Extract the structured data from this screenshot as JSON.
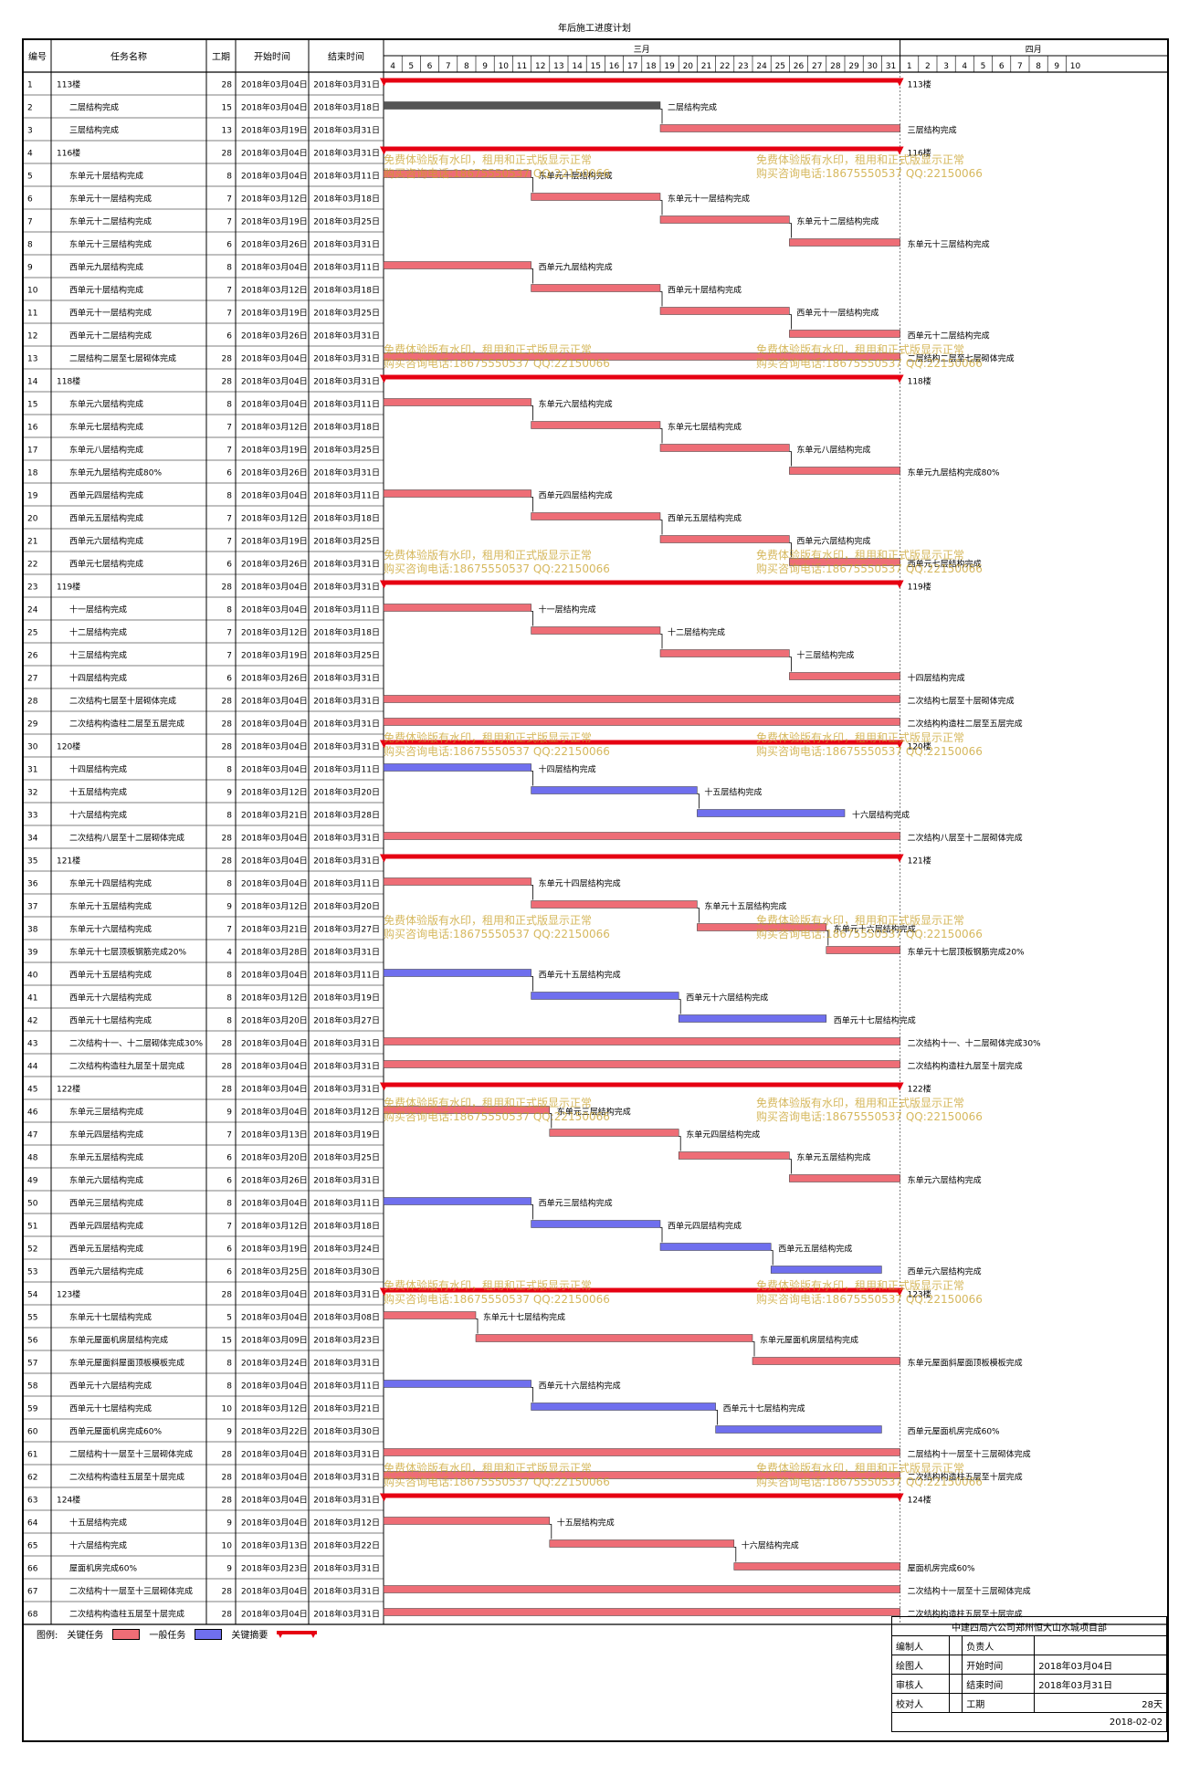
{
  "page": {
    "title": "年后施工进度计划"
  },
  "headers": {
    "id": "编号",
    "name": "任务名称",
    "dur": "工期",
    "start": "开始时间",
    "end": "结束时间",
    "march": "三月",
    "april": "四月"
  },
  "timescale": {
    "march_days": [
      4,
      5,
      6,
      7,
      8,
      9,
      10,
      11,
      12,
      13,
      14,
      15,
      16,
      17,
      18,
      19,
      20,
      21,
      22,
      23,
      24,
      25,
      26,
      27,
      28,
      29,
      30,
      31
    ],
    "april_days": [
      1,
      2,
      3,
      4,
      5,
      6,
      7,
      8,
      9,
      10
    ]
  },
  "colors": {
    "critical": "#ee6d76",
    "normal": "#6f6fee",
    "summary": "#e60012",
    "gray": "#555555"
  },
  "watermark": {
    "line1": "免费体验版有水印，租用和正式版显示正常",
    "line2": "购买咨询电话:18675550537 QQ:22150066"
  },
  "legend": {
    "label": "图例:",
    "critical": "关键任务",
    "normal": "一般任务",
    "summary": "关键摘要"
  },
  "footer": {
    "company": "中建四局六公司郑州恒大山水城项目部",
    "editor": "编制人",
    "responsible": "负责人",
    "drawer": "绘图人",
    "start_label": "开始时间",
    "start_value": "2018年03月04日",
    "reviewer": "审核人",
    "end_label": "结束时间",
    "end_value": "2018年03月31日",
    "checker": "校对人",
    "dur_label": "工期",
    "dur_value": "28天",
    "date": "2018-02-02"
  },
  "chart_data": {
    "type": "gantt",
    "tasks": [
      {
        "id": 1,
        "name": "113楼",
        "level": 0,
        "dur": 28,
        "start": "2018年03月04日",
        "end": "2018年03月31日",
        "s": 4,
        "e": 31,
        "kind": "summary",
        "label": "113楼"
      },
      {
        "id": 2,
        "name": "二层结构完成",
        "level": 1,
        "dur": 15,
        "start": "2018年03月04日",
        "end": "2018年03月18日",
        "s": 4,
        "e": 18,
        "kind": "gray",
        "label": "二层结构完成"
      },
      {
        "id": 3,
        "name": "三层结构完成",
        "level": 1,
        "dur": 13,
        "start": "2018年03月19日",
        "end": "2018年03月31日",
        "s": 19,
        "e": 31,
        "kind": "critical",
        "label": "三层结构完成"
      },
      {
        "id": 4,
        "name": "116楼",
        "level": 0,
        "dur": 28,
        "start": "2018年03月04日",
        "end": "2018年03月31日",
        "s": 4,
        "e": 31,
        "kind": "summary",
        "label": "116楼"
      },
      {
        "id": 5,
        "name": "东单元十层结构完成",
        "level": 1,
        "dur": 8,
        "start": "2018年03月04日",
        "end": "2018年03月11日",
        "s": 4,
        "e": 11,
        "kind": "critical",
        "label": "东单元十层结构完成"
      },
      {
        "id": 6,
        "name": "东单元十一层结构完成",
        "level": 1,
        "dur": 7,
        "start": "2018年03月12日",
        "end": "2018年03月18日",
        "s": 12,
        "e": 18,
        "kind": "critical",
        "label": "东单元十一层结构完成"
      },
      {
        "id": 7,
        "name": "东单元十二层结构完成",
        "level": 1,
        "dur": 7,
        "start": "2018年03月19日",
        "end": "2018年03月25日",
        "s": 19,
        "e": 25,
        "kind": "critical",
        "label": "东单元十二层结构完成"
      },
      {
        "id": 8,
        "name": "东单元十三层结构完成",
        "level": 1,
        "dur": 6,
        "start": "2018年03月26日",
        "end": "2018年03月31日",
        "s": 26,
        "e": 31,
        "kind": "critical",
        "label": "东单元十三层结构完成"
      },
      {
        "id": 9,
        "name": "西单元九层结构完成",
        "level": 1,
        "dur": 8,
        "start": "2018年03月04日",
        "end": "2018年03月11日",
        "s": 4,
        "e": 11,
        "kind": "critical",
        "label": "西单元九层结构完成"
      },
      {
        "id": 10,
        "name": "西单元十层结构完成",
        "level": 1,
        "dur": 7,
        "start": "2018年03月12日",
        "end": "2018年03月18日",
        "s": 12,
        "e": 18,
        "kind": "critical",
        "label": "西单元十层结构完成"
      },
      {
        "id": 11,
        "name": "西单元十一层结构完成",
        "level": 1,
        "dur": 7,
        "start": "2018年03月19日",
        "end": "2018年03月25日",
        "s": 19,
        "e": 25,
        "kind": "critical",
        "label": "西单元十一层结构完成"
      },
      {
        "id": 12,
        "name": "西单元十二层结构完成",
        "level": 1,
        "dur": 6,
        "start": "2018年03月26日",
        "end": "2018年03月31日",
        "s": 26,
        "e": 31,
        "kind": "critical",
        "label": "西单元十二层结构完成"
      },
      {
        "id": 13,
        "name": "二层结构二层至七层砌体完成",
        "level": 1,
        "dur": 28,
        "start": "2018年03月04日",
        "end": "2018年03月31日",
        "s": 4,
        "e": 31,
        "kind": "critical",
        "label": "二层结构二层至七层砌体完成"
      },
      {
        "id": 14,
        "name": "118楼",
        "level": 0,
        "dur": 28,
        "start": "2018年03月04日",
        "end": "2018年03月31日",
        "s": 4,
        "e": 31,
        "kind": "summary",
        "label": "118楼"
      },
      {
        "id": 15,
        "name": "东单元六层结构完成",
        "level": 1,
        "dur": 8,
        "start": "2018年03月04日",
        "end": "2018年03月11日",
        "s": 4,
        "e": 11,
        "kind": "critical",
        "label": "东单元六层结构完成"
      },
      {
        "id": 16,
        "name": "东单元七层结构完成",
        "level": 1,
        "dur": 7,
        "start": "2018年03月12日",
        "end": "2018年03月18日",
        "s": 12,
        "e": 18,
        "kind": "critical",
        "label": "东单元七层结构完成"
      },
      {
        "id": 17,
        "name": "东单元八层结构完成",
        "level": 1,
        "dur": 7,
        "start": "2018年03月19日",
        "end": "2018年03月25日",
        "s": 19,
        "e": 25,
        "kind": "critical",
        "label": "东单元八层结构完成"
      },
      {
        "id": 18,
        "name": "东单元九层结构完成80%",
        "level": 1,
        "dur": 6,
        "start": "2018年03月26日",
        "end": "2018年03月31日",
        "s": 26,
        "e": 31,
        "kind": "critical",
        "label": "东单元九层结构完成80%"
      },
      {
        "id": 19,
        "name": "西单元四层结构完成",
        "level": 1,
        "dur": 8,
        "start": "2018年03月04日",
        "end": "2018年03月11日",
        "s": 4,
        "e": 11,
        "kind": "critical",
        "label": "西单元四层结构完成"
      },
      {
        "id": 20,
        "name": "西单元五层结构完成",
        "level": 1,
        "dur": 7,
        "start": "2018年03月12日",
        "end": "2018年03月18日",
        "s": 12,
        "e": 18,
        "kind": "critical",
        "label": "西单元五层结构完成"
      },
      {
        "id": 21,
        "name": "西单元六层结构完成",
        "level": 1,
        "dur": 7,
        "start": "2018年03月19日",
        "end": "2018年03月25日",
        "s": 19,
        "e": 25,
        "kind": "critical",
        "label": "西单元六层结构完成"
      },
      {
        "id": 22,
        "name": "西单元七层结构完成",
        "level": 1,
        "dur": 6,
        "start": "2018年03月26日",
        "end": "2018年03月31日",
        "s": 26,
        "e": 31,
        "kind": "critical",
        "label": "西单元七层结构完成"
      },
      {
        "id": 23,
        "name": "119楼",
        "level": 0,
        "dur": 28,
        "start": "2018年03月04日",
        "end": "2018年03月31日",
        "s": 4,
        "e": 31,
        "kind": "summary",
        "label": "119楼"
      },
      {
        "id": 24,
        "name": "十一层结构完成",
        "level": 1,
        "dur": 8,
        "start": "2018年03月04日",
        "end": "2018年03月11日",
        "s": 4,
        "e": 11,
        "kind": "critical",
        "label": "十一层结构完成"
      },
      {
        "id": 25,
        "name": "十二层结构完成",
        "level": 1,
        "dur": 7,
        "start": "2018年03月12日",
        "end": "2018年03月18日",
        "s": 12,
        "e": 18,
        "kind": "critical",
        "label": "十二层结构完成"
      },
      {
        "id": 26,
        "name": "十三层结构完成",
        "level": 1,
        "dur": 7,
        "start": "2018年03月19日",
        "end": "2018年03月25日",
        "s": 19,
        "e": 25,
        "kind": "critical",
        "label": "十三层结构完成"
      },
      {
        "id": 27,
        "name": "十四层结构完成",
        "level": 1,
        "dur": 6,
        "start": "2018年03月26日",
        "end": "2018年03月31日",
        "s": 26,
        "e": 31,
        "kind": "critical",
        "label": "十四层结构完成"
      },
      {
        "id": 28,
        "name": "二次结构七层至十层砌体完成",
        "level": 1,
        "dur": 28,
        "start": "2018年03月04日",
        "end": "2018年03月31日",
        "s": 4,
        "e": 31,
        "kind": "critical",
        "label": "二次结构七层至十层砌体完成"
      },
      {
        "id": 29,
        "name": "二次结构构造柱二层至五层完成",
        "level": 1,
        "dur": 28,
        "start": "2018年03月04日",
        "end": "2018年03月31日",
        "s": 4,
        "e": 31,
        "kind": "critical",
        "label": "二次结构构造柱二层至五层完成"
      },
      {
        "id": 30,
        "name": "120楼",
        "level": 0,
        "dur": 28,
        "start": "2018年03月04日",
        "end": "2018年03月31日",
        "s": 4,
        "e": 31,
        "kind": "summary",
        "label": "120楼"
      },
      {
        "id": 31,
        "name": "十四层结构完成",
        "level": 1,
        "dur": 8,
        "start": "2018年03月04日",
        "end": "2018年03月11日",
        "s": 4,
        "e": 11,
        "kind": "normal",
        "label": "十四层结构完成"
      },
      {
        "id": 32,
        "name": "十五层结构完成",
        "level": 1,
        "dur": 9,
        "start": "2018年03月12日",
        "end": "2018年03月20日",
        "s": 12,
        "e": 20,
        "kind": "normal",
        "label": "十五层结构完成"
      },
      {
        "id": 33,
        "name": "十六层结构完成",
        "level": 1,
        "dur": 8,
        "start": "2018年03月21日",
        "end": "2018年03月28日",
        "s": 21,
        "e": 28,
        "kind": "normal",
        "label": "十六层结构完成"
      },
      {
        "id": 34,
        "name": "二次结构八层至十二层砌体完成",
        "level": 1,
        "dur": 28,
        "start": "2018年03月04日",
        "end": "2018年03月31日",
        "s": 4,
        "e": 31,
        "kind": "critical",
        "label": "二次结构八层至十二层砌体完成"
      },
      {
        "id": 35,
        "name": "121楼",
        "level": 0,
        "dur": 28,
        "start": "2018年03月04日",
        "end": "2018年03月31日",
        "s": 4,
        "e": 31,
        "kind": "summary",
        "label": "121楼"
      },
      {
        "id": 36,
        "name": "东单元十四层结构完成",
        "level": 1,
        "dur": 8,
        "start": "2018年03月04日",
        "end": "2018年03月11日",
        "s": 4,
        "e": 11,
        "kind": "critical",
        "label": "东单元十四层结构完成"
      },
      {
        "id": 37,
        "name": "东单元十五层结构完成",
        "level": 1,
        "dur": 9,
        "start": "2018年03月12日",
        "end": "2018年03月20日",
        "s": 12,
        "e": 20,
        "kind": "critical",
        "label": "东单元十五层结构完成"
      },
      {
        "id": 38,
        "name": "东单元十六层结构完成",
        "level": 1,
        "dur": 7,
        "start": "2018年03月21日",
        "end": "2018年03月27日",
        "s": 21,
        "e": 27,
        "kind": "critical",
        "label": "东单元十六层结构完成"
      },
      {
        "id": 39,
        "name": "东单元十七层顶板钢筋完成20%",
        "level": 1,
        "dur": 4,
        "start": "2018年03月28日",
        "end": "2018年03月31日",
        "s": 28,
        "e": 31,
        "kind": "critical",
        "label": "东单元十七层顶板钢筋完成20%"
      },
      {
        "id": 40,
        "name": "西单元十五层结构完成",
        "level": 1,
        "dur": 8,
        "start": "2018年03月04日",
        "end": "2018年03月11日",
        "s": 4,
        "e": 11,
        "kind": "normal",
        "label": "西单元十五层结构完成"
      },
      {
        "id": 41,
        "name": "西单元十六层结构完成",
        "level": 1,
        "dur": 8,
        "start": "2018年03月12日",
        "end": "2018年03月19日",
        "s": 12,
        "e": 19,
        "kind": "normal",
        "label": "西单元十六层结构完成"
      },
      {
        "id": 42,
        "name": "西单元十七层结构完成",
        "level": 1,
        "dur": 8,
        "start": "2018年03月20日",
        "end": "2018年03月27日",
        "s": 20,
        "e": 27,
        "kind": "normal",
        "label": "西单元十七层结构完成"
      },
      {
        "id": 43,
        "name": "二次结构十一、十二层砌体完成30%",
        "level": 1,
        "dur": 28,
        "start": "2018年03月04日",
        "end": "2018年03月31日",
        "s": 4,
        "e": 31,
        "kind": "critical",
        "label": "二次结构十一、十二层砌体完成30%"
      },
      {
        "id": 44,
        "name": "二次结构构造柱九层至十层完成",
        "level": 1,
        "dur": 28,
        "start": "2018年03月04日",
        "end": "2018年03月31日",
        "s": 4,
        "e": 31,
        "kind": "critical",
        "label": "二次结构构造柱九层至十层完成"
      },
      {
        "id": 45,
        "name": "122楼",
        "level": 0,
        "dur": 28,
        "start": "2018年03月04日",
        "end": "2018年03月31日",
        "s": 4,
        "e": 31,
        "kind": "summary",
        "label": "122楼"
      },
      {
        "id": 46,
        "name": "东单元三层结构完成",
        "level": 1,
        "dur": 9,
        "start": "2018年03月04日",
        "end": "2018年03月12日",
        "s": 4,
        "e": 12,
        "kind": "critical",
        "label": "东单元三层结构完成"
      },
      {
        "id": 47,
        "name": "东单元四层结构完成",
        "level": 1,
        "dur": 7,
        "start": "2018年03月13日",
        "end": "2018年03月19日",
        "s": 13,
        "e": 19,
        "kind": "critical",
        "label": "东单元四层结构完成"
      },
      {
        "id": 48,
        "name": "东单元五层结构完成",
        "level": 1,
        "dur": 6,
        "start": "2018年03月20日",
        "end": "2018年03月25日",
        "s": 20,
        "e": 25,
        "kind": "critical",
        "label": "东单元五层结构完成"
      },
      {
        "id": 49,
        "name": "东单元六层结构完成",
        "level": 1,
        "dur": 6,
        "start": "2018年03月26日",
        "end": "2018年03月31日",
        "s": 26,
        "e": 31,
        "kind": "critical",
        "label": "东单元六层结构完成"
      },
      {
        "id": 50,
        "name": "西单元三层结构完成",
        "level": 1,
        "dur": 8,
        "start": "2018年03月04日",
        "end": "2018年03月11日",
        "s": 4,
        "e": 11,
        "kind": "normal",
        "label": "西单元三层结构完成"
      },
      {
        "id": 51,
        "name": "西单元四层结构完成",
        "level": 1,
        "dur": 7,
        "start": "2018年03月12日",
        "end": "2018年03月18日",
        "s": 12,
        "e": 18,
        "kind": "normal",
        "label": "西单元四层结构完成"
      },
      {
        "id": 52,
        "name": "西单元五层结构完成",
        "level": 1,
        "dur": 6,
        "start": "2018年03月19日",
        "end": "2018年03月24日",
        "s": 19,
        "e": 24,
        "kind": "normal",
        "label": "西单元五层结构完成"
      },
      {
        "id": 53,
        "name": "西单元六层结构完成",
        "level": 1,
        "dur": 6,
        "start": "2018年03月25日",
        "end": "2018年03月30日",
        "s": 25,
        "e": 30,
        "kind": "normal",
        "label": "西单元六层结构完成"
      },
      {
        "id": 54,
        "name": "123楼",
        "level": 0,
        "dur": 28,
        "start": "2018年03月04日",
        "end": "2018年03月31日",
        "s": 4,
        "e": 31,
        "kind": "summary",
        "label": "123楼"
      },
      {
        "id": 55,
        "name": "东单元十七层结构完成",
        "level": 1,
        "dur": 5,
        "start": "2018年03月04日",
        "end": "2018年03月08日",
        "s": 4,
        "e": 8,
        "kind": "critical",
        "label": "东单元十七层结构完成"
      },
      {
        "id": 56,
        "name": "东单元屋面机房层结构完成",
        "level": 1,
        "dur": 15,
        "start": "2018年03月09日",
        "end": "2018年03月23日",
        "s": 9,
        "e": 23,
        "kind": "critical",
        "label": "东单元屋面机房层结构完成"
      },
      {
        "id": 57,
        "name": "东单元屋面斜屋面顶板模板完成",
        "level": 1,
        "dur": 8,
        "start": "2018年03月24日",
        "end": "2018年03月31日",
        "s": 24,
        "e": 31,
        "kind": "critical",
        "label": "东单元屋面斜屋面顶板模板完成"
      },
      {
        "id": 58,
        "name": "西单元十六层结构完成",
        "level": 1,
        "dur": 8,
        "start": "2018年03月04日",
        "end": "2018年03月11日",
        "s": 4,
        "e": 11,
        "kind": "normal",
        "label": "西单元十六层结构完成"
      },
      {
        "id": 59,
        "name": "西单元十七层结构完成",
        "level": 1,
        "dur": 10,
        "start": "2018年03月12日",
        "end": "2018年03月21日",
        "s": 12,
        "e": 21,
        "kind": "normal",
        "label": "西单元十七层结构完成"
      },
      {
        "id": 60,
        "name": "西单元屋面机房完成60%",
        "level": 1,
        "dur": 9,
        "start": "2018年03月22日",
        "end": "2018年03月30日",
        "s": 22,
        "e": 30,
        "kind": "normal",
        "label": "西单元屋面机房完成60%"
      },
      {
        "id": 61,
        "name": "二层结构十一层至十三层砌体完成",
        "level": 1,
        "dur": 28,
        "start": "2018年03月04日",
        "end": "2018年03月31日",
        "s": 4,
        "e": 31,
        "kind": "critical",
        "label": "二层结构十一层至十三层砌体完成"
      },
      {
        "id": 62,
        "name": "二次结构构造柱五层至十层完成",
        "level": 1,
        "dur": 28,
        "start": "2018年03月04日",
        "end": "2018年03月31日",
        "s": 4,
        "e": 31,
        "kind": "critical",
        "label": "二次结构构造柱五层至十层完成"
      },
      {
        "id": 63,
        "name": "124楼",
        "level": 0,
        "dur": 28,
        "start": "2018年03月04日",
        "end": "2018年03月31日",
        "s": 4,
        "e": 31,
        "kind": "summary",
        "label": "124楼"
      },
      {
        "id": 64,
        "name": "十五层结构完成",
        "level": 1,
        "dur": 9,
        "start": "2018年03月04日",
        "end": "2018年03月12日",
        "s": 4,
        "e": 12,
        "kind": "critical",
        "label": "十五层结构完成"
      },
      {
        "id": 65,
        "name": "十六层结构完成",
        "level": 1,
        "dur": 10,
        "start": "2018年03月13日",
        "end": "2018年03月22日",
        "s": 13,
        "e": 22,
        "kind": "critical",
        "label": "十六层结构完成"
      },
      {
        "id": 66,
        "name": "屋面机房完成60%",
        "level": 1,
        "dur": 9,
        "start": "2018年03月23日",
        "end": "2018年03月31日",
        "s": 23,
        "e": 31,
        "kind": "critical",
        "label": "屋面机房完成60%"
      },
      {
        "id": 67,
        "name": "二次结构十一层至十三层砌体完成",
        "level": 1,
        "dur": 28,
        "start": "2018年03月04日",
        "end": "2018年03月31日",
        "s": 4,
        "e": 31,
        "kind": "critical",
        "label": "二次结构十一层至十三层砌体完成"
      },
      {
        "id": 68,
        "name": "二次结构构造柱五层至十层完成",
        "level": 1,
        "dur": 28,
        "start": "2018年03月04日",
        "end": "2018年03月31日",
        "s": 4,
        "e": 31,
        "kind": "critical",
        "label": "二次结构构造柱五层至十层完成"
      }
    ]
  }
}
